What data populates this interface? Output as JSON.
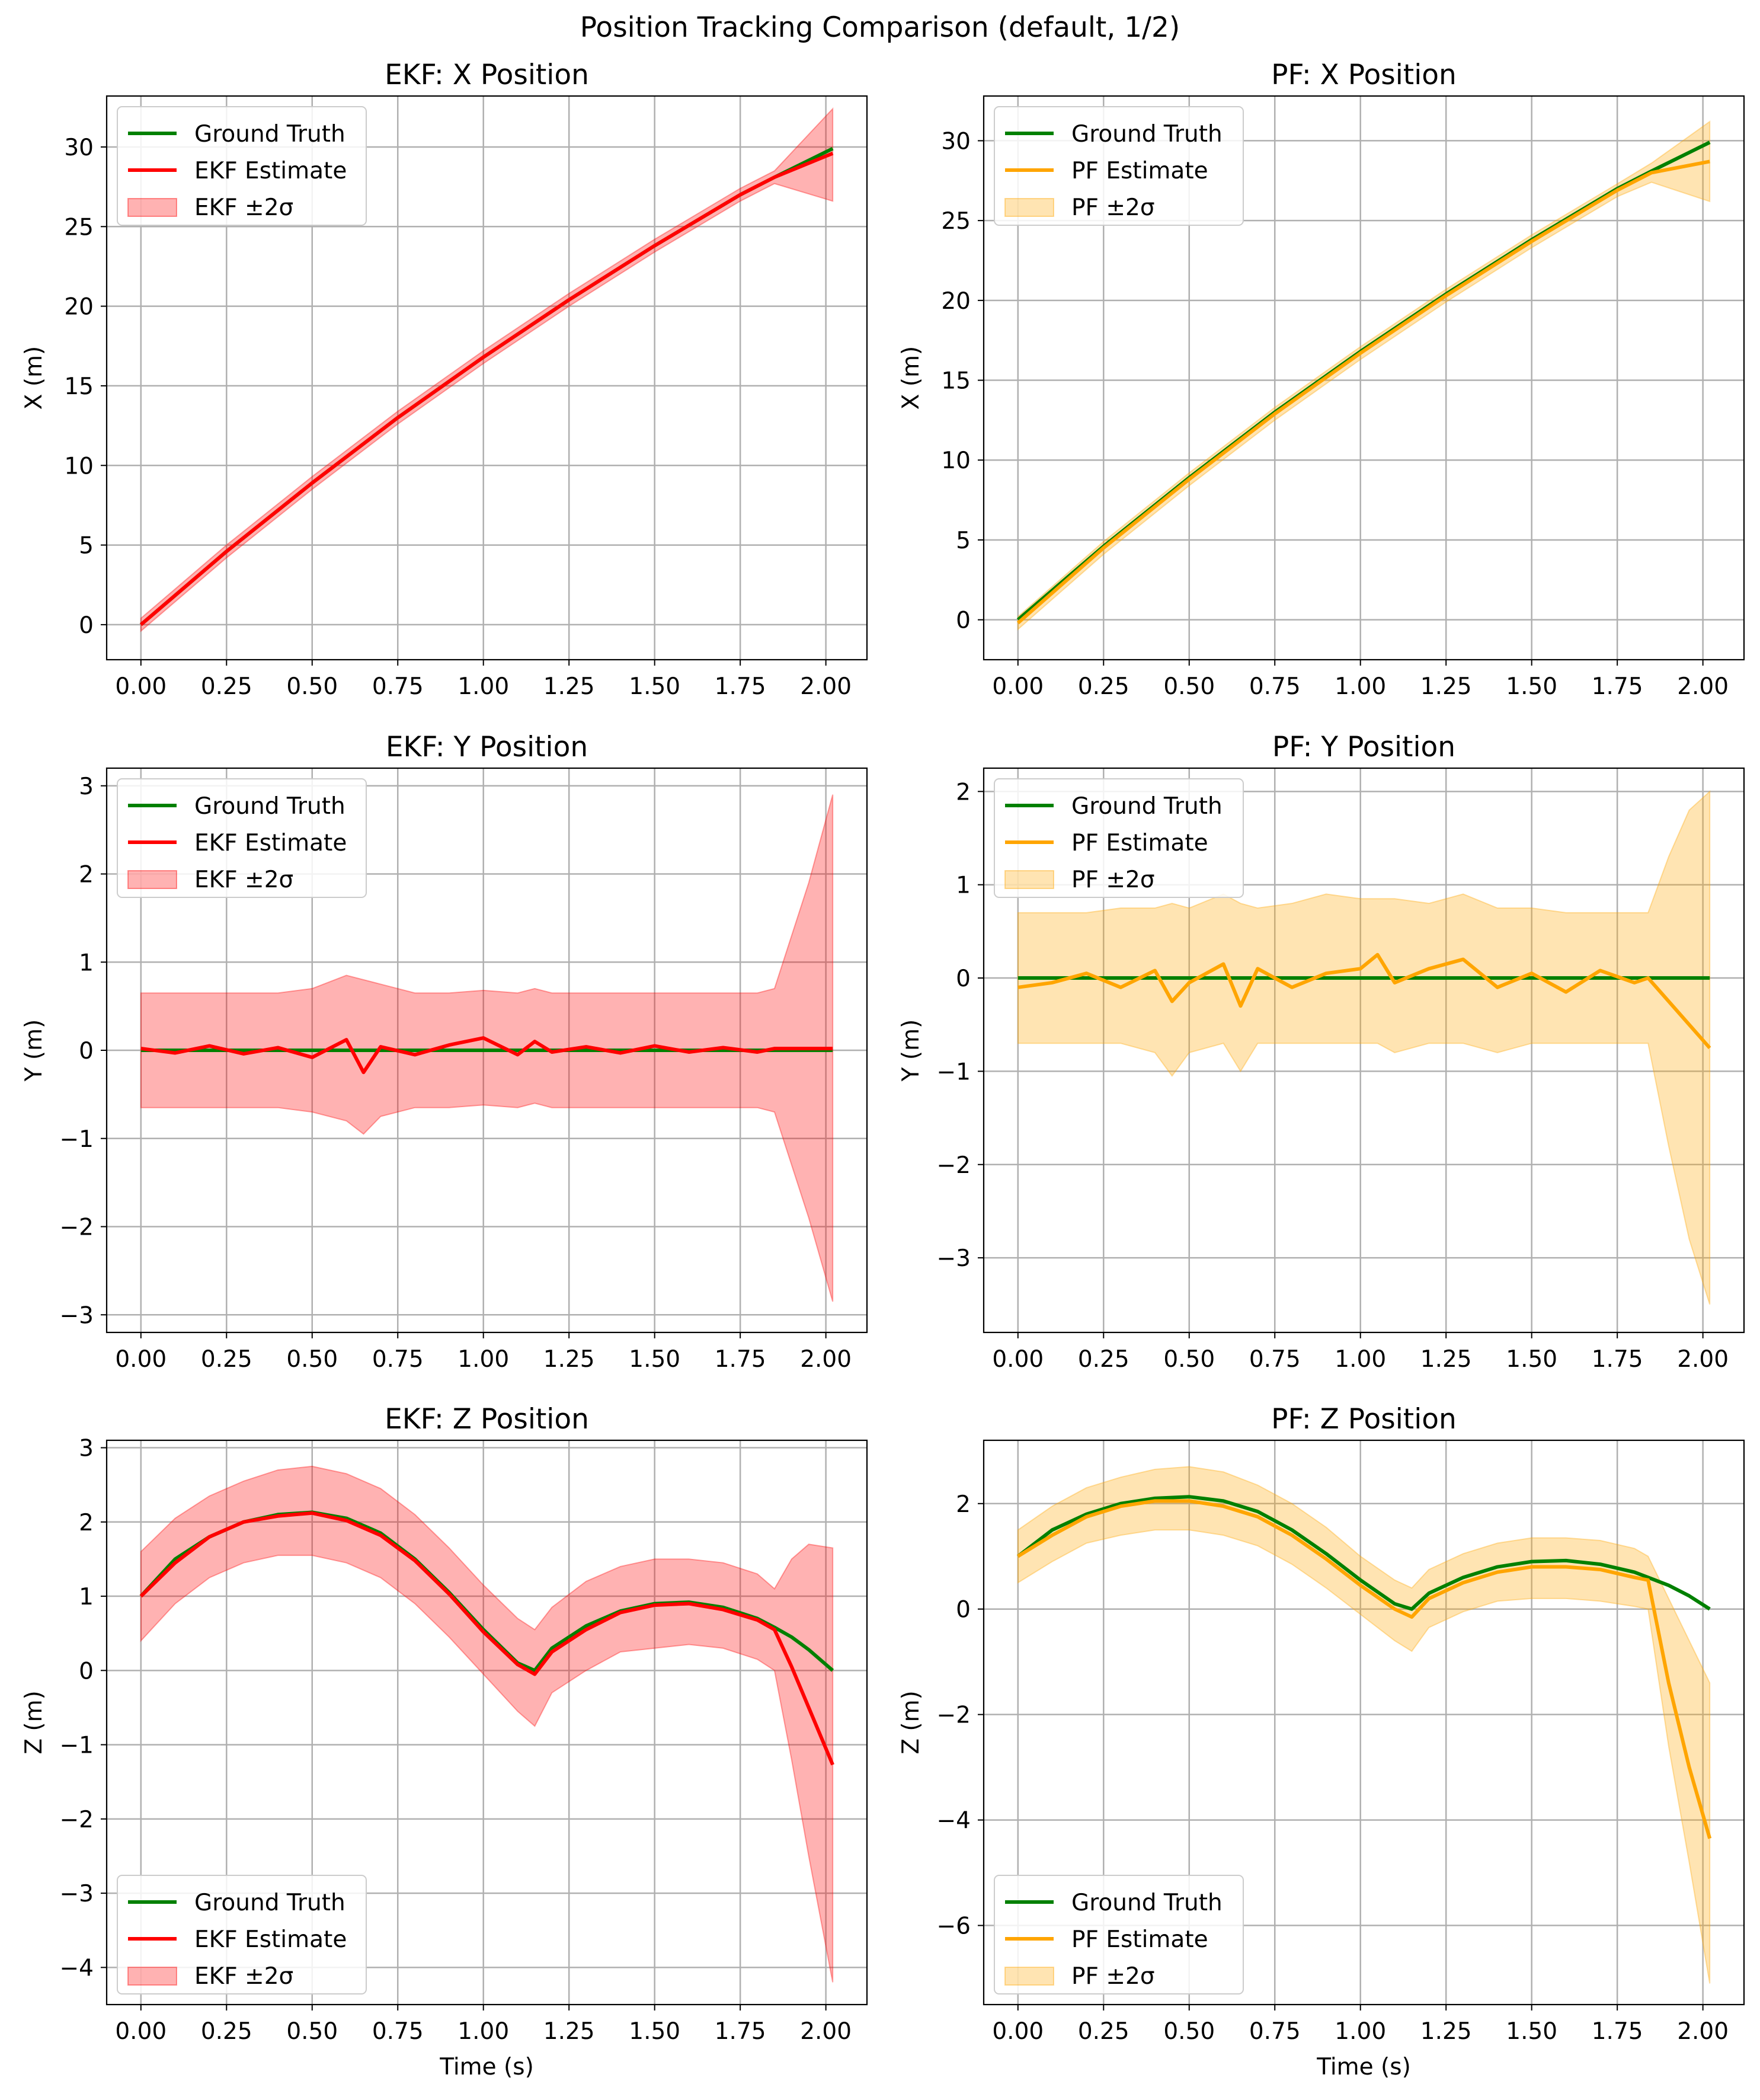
{
  "figure": {
    "title": "Position Tracking Comparison (default, 1/2)"
  },
  "colors": {
    "ground_truth": "#008000",
    "ekf": "#ff0000",
    "ekf_band": "#ff0000",
    "pf": "#ffa500",
    "pf_band": "#ffa500",
    "grid": "#b0b0b0"
  },
  "chart_data": [
    {
      "type": "line",
      "title": "EKF: X Position",
      "xlabel": "",
      "ylabel": "X (m)",
      "xlim": [
        -0.1,
        2.12
      ],
      "ylim": [
        -2.2,
        33.2
      ],
      "xticks": [
        0.0,
        0.25,
        0.5,
        0.75,
        1.0,
        1.25,
        1.5,
        1.75,
        2.0
      ],
      "xtick_labels": [
        "0.00",
        "0.25",
        "0.50",
        "0.75",
        "1.00",
        "1.25",
        "1.50",
        "1.75",
        "2.00"
      ],
      "yticks": [
        0,
        5,
        10,
        15,
        20,
        25,
        30
      ],
      "ytick_labels": [
        "0",
        "5",
        "10",
        "15",
        "20",
        "25",
        "30"
      ],
      "grid": true,
      "legend": {
        "position": "upper left",
        "entries": [
          "Ground Truth",
          "EKF Estimate",
          "EKF ±2σ"
        ]
      },
      "estimator": "ekf",
      "x": [
        0.0,
        0.25,
        0.5,
        0.75,
        1.0,
        1.25,
        1.5,
        1.75,
        1.85,
        2.02
      ],
      "series": [
        {
          "name": "Ground Truth",
          "y": [
            0.0,
            4.6,
            8.9,
            13.0,
            16.8,
            20.4,
            23.8,
            27.0,
            28.1,
            29.9
          ]
        },
        {
          "name": "EKF Estimate",
          "y": [
            0.0,
            4.6,
            8.9,
            13.0,
            16.8,
            20.4,
            23.8,
            27.0,
            28.1,
            29.6
          ]
        }
      ],
      "band": {
        "name": "EKF ±2σ",
        "lower": [
          -0.4,
          4.2,
          8.5,
          12.6,
          16.4,
          20.0,
          23.4,
          26.6,
          27.7,
          26.6
        ],
        "upper": [
          0.4,
          5.0,
          9.3,
          13.4,
          17.2,
          20.8,
          24.2,
          27.4,
          28.5,
          32.4
        ]
      }
    },
    {
      "type": "line",
      "title": "PF: X Position",
      "xlabel": "",
      "ylabel": "X (m)",
      "xlim": [
        -0.1,
        2.12
      ],
      "ylim": [
        -2.5,
        32.8
      ],
      "xticks": [
        0.0,
        0.25,
        0.5,
        0.75,
        1.0,
        1.25,
        1.5,
        1.75,
        2.0
      ],
      "xtick_labels": [
        "0.00",
        "0.25",
        "0.50",
        "0.75",
        "1.00",
        "1.25",
        "1.50",
        "1.75",
        "2.00"
      ],
      "yticks": [
        0,
        5,
        10,
        15,
        20,
        25,
        30
      ],
      "ytick_labels": [
        "0",
        "5",
        "10",
        "15",
        "20",
        "25",
        "30"
      ],
      "grid": true,
      "legend": {
        "position": "upper left",
        "entries": [
          "Ground Truth",
          "PF Estimate",
          "PF ±2σ"
        ]
      },
      "estimator": "pf",
      "x": [
        0.0,
        0.25,
        0.5,
        0.75,
        1.0,
        1.25,
        1.5,
        1.75,
        1.85,
        2.02
      ],
      "series": [
        {
          "name": "Ground Truth",
          "y": [
            0.0,
            4.6,
            8.9,
            13.0,
            16.8,
            20.4,
            23.8,
            27.0,
            28.1,
            29.9
          ]
        },
        {
          "name": "PF Estimate",
          "y": [
            -0.2,
            4.5,
            8.8,
            12.9,
            16.7,
            20.3,
            23.7,
            26.9,
            28.0,
            28.7
          ]
        }
      ],
      "band": {
        "name": "PF ±2σ",
        "lower": [
          -0.6,
          4.1,
          8.4,
          12.5,
          16.3,
          19.9,
          23.3,
          26.5,
          27.4,
          26.2
        ],
        "upper": [
          0.2,
          4.9,
          9.2,
          13.3,
          17.1,
          20.7,
          24.1,
          27.3,
          28.6,
          31.2
        ]
      }
    },
    {
      "type": "line",
      "title": "EKF: Y Position",
      "xlabel": "",
      "ylabel": "Y (m)",
      "xlim": [
        -0.1,
        2.12
      ],
      "ylim": [
        -3.2,
        3.2
      ],
      "xticks": [
        0.0,
        0.25,
        0.5,
        0.75,
        1.0,
        1.25,
        1.5,
        1.75,
        2.0
      ],
      "xtick_labels": [
        "0.00",
        "0.25",
        "0.50",
        "0.75",
        "1.00",
        "1.25",
        "1.50",
        "1.75",
        "2.00"
      ],
      "yticks": [
        -3,
        -2,
        -1,
        0,
        1,
        2,
        3
      ],
      "ytick_labels": [
        "−3",
        "−2",
        "−1",
        "0",
        "1",
        "2",
        "3"
      ],
      "grid": true,
      "legend": {
        "position": "upper left",
        "entries": [
          "Ground Truth",
          "EKF Estimate",
          "EKF ±2σ"
        ]
      },
      "estimator": "ekf",
      "x": [
        0.0,
        0.1,
        0.2,
        0.3,
        0.4,
        0.5,
        0.6,
        0.65,
        0.7,
        0.8,
        0.9,
        1.0,
        1.1,
        1.15,
        1.2,
        1.3,
        1.4,
        1.5,
        1.6,
        1.7,
        1.8,
        1.85,
        1.95,
        2.02
      ],
      "series": [
        {
          "name": "Ground Truth",
          "y": [
            0,
            0,
            0,
            0,
            0,
            0,
            0,
            0,
            0,
            0,
            0,
            0,
            0,
            0,
            0,
            0,
            0,
            0,
            0,
            0,
            0,
            0,
            0,
            0
          ]
        },
        {
          "name": "EKF Estimate",
          "y": [
            0.02,
            -0.03,
            0.05,
            -0.04,
            0.03,
            -0.08,
            0.12,
            -0.25,
            0.04,
            -0.05,
            0.06,
            0.14,
            -0.05,
            0.1,
            -0.02,
            0.04,
            -0.03,
            0.05,
            -0.02,
            0.03,
            -0.02,
            0.02,
            0.02,
            0.02
          ]
        }
      ],
      "band": {
        "name": "EKF ±2σ",
        "lower": [
          -0.65,
          -0.65,
          -0.65,
          -0.65,
          -0.65,
          -0.7,
          -0.8,
          -0.95,
          -0.75,
          -0.65,
          -0.65,
          -0.62,
          -0.65,
          -0.6,
          -0.65,
          -0.65,
          -0.65,
          -0.65,
          -0.65,
          -0.65,
          -0.65,
          -0.7,
          -1.9,
          -2.85
        ],
        "upper": [
          0.65,
          0.65,
          0.65,
          0.65,
          0.65,
          0.7,
          0.85,
          0.8,
          0.75,
          0.65,
          0.65,
          0.68,
          0.65,
          0.7,
          0.65,
          0.65,
          0.65,
          0.65,
          0.65,
          0.65,
          0.65,
          0.7,
          1.9,
          2.9
        ]
      }
    },
    {
      "type": "line",
      "title": "PF: Y Position",
      "xlabel": "",
      "ylabel": "Y (m)",
      "xlim": [
        -0.1,
        2.12
      ],
      "ylim": [
        -3.8,
        2.25
      ],
      "xticks": [
        0.0,
        0.25,
        0.5,
        0.75,
        1.0,
        1.25,
        1.5,
        1.75,
        2.0
      ],
      "xtick_labels": [
        "0.00",
        "0.25",
        "0.50",
        "0.75",
        "1.00",
        "1.25",
        "1.50",
        "1.75",
        "2.00"
      ],
      "yticks": [
        -3,
        -2,
        -1,
        0,
        1,
        2
      ],
      "ytick_labels": [
        "−3",
        "−2",
        "−1",
        "0",
        "1",
        "2"
      ],
      "grid": true,
      "legend": {
        "position": "upper left",
        "entries": [
          "Ground Truth",
          "PF Estimate",
          "PF ±2σ"
        ]
      },
      "estimator": "pf",
      "x": [
        0.0,
        0.1,
        0.2,
        0.3,
        0.4,
        0.45,
        0.5,
        0.6,
        0.65,
        0.7,
        0.8,
        0.9,
        1.0,
        1.05,
        1.1,
        1.2,
        1.3,
        1.4,
        1.5,
        1.6,
        1.7,
        1.8,
        1.84,
        1.9,
        1.96,
        2.02
      ],
      "series": [
        {
          "name": "Ground Truth",
          "y": [
            0,
            0,
            0,
            0,
            0,
            0,
            0,
            0,
            0,
            0,
            0,
            0,
            0,
            0,
            0,
            0,
            0,
            0,
            0,
            0,
            0,
            0,
            0,
            0,
            0,
            0
          ]
        },
        {
          "name": "PF Estimate",
          "y": [
            -0.1,
            -0.05,
            0.05,
            -0.1,
            0.08,
            -0.25,
            -0.05,
            0.15,
            -0.3,
            0.1,
            -0.1,
            0.05,
            0.1,
            0.25,
            -0.05,
            0.1,
            0.2,
            -0.1,
            0.05,
            -0.15,
            0.08,
            -0.05,
            0.0,
            -0.25,
            -0.5,
            -0.75
          ]
        }
      ],
      "band": {
        "name": "PF ±2σ",
        "lower": [
          -0.7,
          -0.7,
          -0.7,
          -0.7,
          -0.8,
          -1.05,
          -0.8,
          -0.7,
          -1.0,
          -0.7,
          -0.7,
          -0.7,
          -0.7,
          -0.7,
          -0.8,
          -0.7,
          -0.7,
          -0.8,
          -0.7,
          -0.7,
          -0.7,
          -0.7,
          -0.7,
          -1.8,
          -2.8,
          -3.5
        ],
        "upper": [
          0.7,
          0.7,
          0.7,
          0.75,
          0.75,
          0.8,
          0.75,
          0.9,
          0.8,
          0.75,
          0.8,
          0.9,
          0.85,
          0.85,
          0.85,
          0.8,
          0.9,
          0.75,
          0.75,
          0.7,
          0.7,
          0.7,
          0.7,
          1.3,
          1.8,
          2.0
        ]
      }
    },
    {
      "type": "line",
      "title": "EKF: Z Position",
      "xlabel": "Time (s)",
      "ylabel": "Z (m)",
      "xlim": [
        -0.1,
        2.12
      ],
      "ylim": [
        -4.5,
        3.1
      ],
      "xticks": [
        0.0,
        0.25,
        0.5,
        0.75,
        1.0,
        1.25,
        1.5,
        1.75,
        2.0
      ],
      "xtick_labels": [
        "0.00",
        "0.25",
        "0.50",
        "0.75",
        "1.00",
        "1.25",
        "1.50",
        "1.75",
        "2.00"
      ],
      "yticks": [
        -4,
        -3,
        -2,
        -1,
        0,
        1,
        2,
        3
      ],
      "ytick_labels": [
        "−4",
        "−3",
        "−2",
        "−1",
        "0",
        "1",
        "2",
        "3"
      ],
      "grid": true,
      "legend": {
        "position": "lower left",
        "entries": [
          "Ground Truth",
          "EKF Estimate",
          "EKF ±2σ"
        ]
      },
      "estimator": "ekf",
      "x": [
        0.0,
        0.1,
        0.2,
        0.3,
        0.4,
        0.5,
        0.6,
        0.7,
        0.8,
        0.9,
        1.0,
        1.1,
        1.15,
        1.2,
        1.3,
        1.4,
        1.5,
        1.6,
        1.7,
        1.8,
        1.85,
        1.9,
        1.95,
        2.02
      ],
      "series": [
        {
          "name": "Ground Truth",
          "y": [
            1.0,
            1.5,
            1.8,
            2.0,
            2.1,
            2.13,
            2.05,
            1.85,
            1.5,
            1.05,
            0.55,
            0.1,
            0.0,
            0.3,
            0.6,
            0.8,
            0.9,
            0.92,
            0.85,
            0.7,
            0.58,
            0.45,
            0.28,
            0.0
          ]
        },
        {
          "name": "EKF Estimate",
          "y": [
            1.0,
            1.45,
            1.8,
            2.0,
            2.08,
            2.12,
            2.02,
            1.82,
            1.48,
            1.03,
            0.52,
            0.08,
            -0.05,
            0.25,
            0.55,
            0.78,
            0.88,
            0.9,
            0.82,
            0.68,
            0.55,
            0.05,
            -0.5,
            -1.27
          ]
        }
      ],
      "band": {
        "name": "EKF ±2σ",
        "lower": [
          0.4,
          0.9,
          1.25,
          1.45,
          1.55,
          1.55,
          1.45,
          1.25,
          0.9,
          0.45,
          -0.05,
          -0.55,
          -0.75,
          -0.3,
          0.0,
          0.25,
          0.3,
          0.35,
          0.3,
          0.15,
          0.0,
          -1.2,
          -2.5,
          -4.2
        ],
        "upper": [
          1.6,
          2.05,
          2.35,
          2.55,
          2.7,
          2.75,
          2.65,
          2.45,
          2.1,
          1.65,
          1.15,
          0.7,
          0.55,
          0.85,
          1.2,
          1.4,
          1.5,
          1.5,
          1.45,
          1.3,
          1.1,
          1.5,
          1.7,
          1.65
        ]
      }
    },
    {
      "type": "line",
      "title": "PF: Z Position",
      "xlabel": "Time (s)",
      "ylabel": "Z (m)",
      "xlim": [
        -0.1,
        2.12
      ],
      "ylim": [
        -7.5,
        3.2
      ],
      "xticks": [
        0.0,
        0.25,
        0.5,
        0.75,
        1.0,
        1.25,
        1.5,
        1.75,
        2.0
      ],
      "xtick_labels": [
        "0.00",
        "0.25",
        "0.50",
        "0.75",
        "1.00",
        "1.25",
        "1.50",
        "1.75",
        "2.00"
      ],
      "yticks": [
        -6,
        -4,
        -2,
        0,
        2
      ],
      "ytick_labels": [
        "−6",
        "−4",
        "−2",
        "0",
        "2"
      ],
      "grid": true,
      "legend": {
        "position": "lower left",
        "entries": [
          "Ground Truth",
          "PF Estimate",
          "PF ±2σ"
        ]
      },
      "estimator": "pf",
      "x": [
        0.0,
        0.1,
        0.2,
        0.3,
        0.4,
        0.5,
        0.6,
        0.7,
        0.8,
        0.9,
        1.0,
        1.1,
        1.15,
        1.2,
        1.3,
        1.4,
        1.5,
        1.6,
        1.7,
        1.8,
        1.84,
        1.9,
        1.96,
        2.02
      ],
      "series": [
        {
          "name": "Ground Truth",
          "y": [
            1.0,
            1.5,
            1.8,
            2.0,
            2.1,
            2.13,
            2.05,
            1.85,
            1.5,
            1.05,
            0.55,
            0.1,
            0.0,
            0.3,
            0.6,
            0.8,
            0.9,
            0.92,
            0.85,
            0.7,
            0.6,
            0.45,
            0.25,
            0.0
          ]
        },
        {
          "name": "PF Estimate",
          "y": [
            1.0,
            1.4,
            1.75,
            1.95,
            2.05,
            2.05,
            1.95,
            1.75,
            1.4,
            0.95,
            0.45,
            0.0,
            -0.15,
            0.2,
            0.5,
            0.7,
            0.8,
            0.8,
            0.75,
            0.6,
            0.55,
            -1.4,
            -3.0,
            -4.35
          ]
        }
      ],
      "band": {
        "name": "PF ±2σ",
        "lower": [
          0.5,
          0.9,
          1.25,
          1.4,
          1.5,
          1.5,
          1.4,
          1.2,
          0.85,
          0.4,
          -0.1,
          -0.6,
          -0.8,
          -0.35,
          -0.05,
          0.15,
          0.2,
          0.2,
          0.15,
          0.05,
          0.0,
          -2.6,
          -4.8,
          -7.1
        ],
        "upper": [
          1.5,
          1.95,
          2.3,
          2.5,
          2.65,
          2.7,
          2.6,
          2.35,
          2.0,
          1.55,
          1.0,
          0.55,
          0.4,
          0.75,
          1.05,
          1.25,
          1.35,
          1.35,
          1.3,
          1.15,
          1.0,
          0.2,
          -0.6,
          -1.4
        ]
      }
    }
  ]
}
